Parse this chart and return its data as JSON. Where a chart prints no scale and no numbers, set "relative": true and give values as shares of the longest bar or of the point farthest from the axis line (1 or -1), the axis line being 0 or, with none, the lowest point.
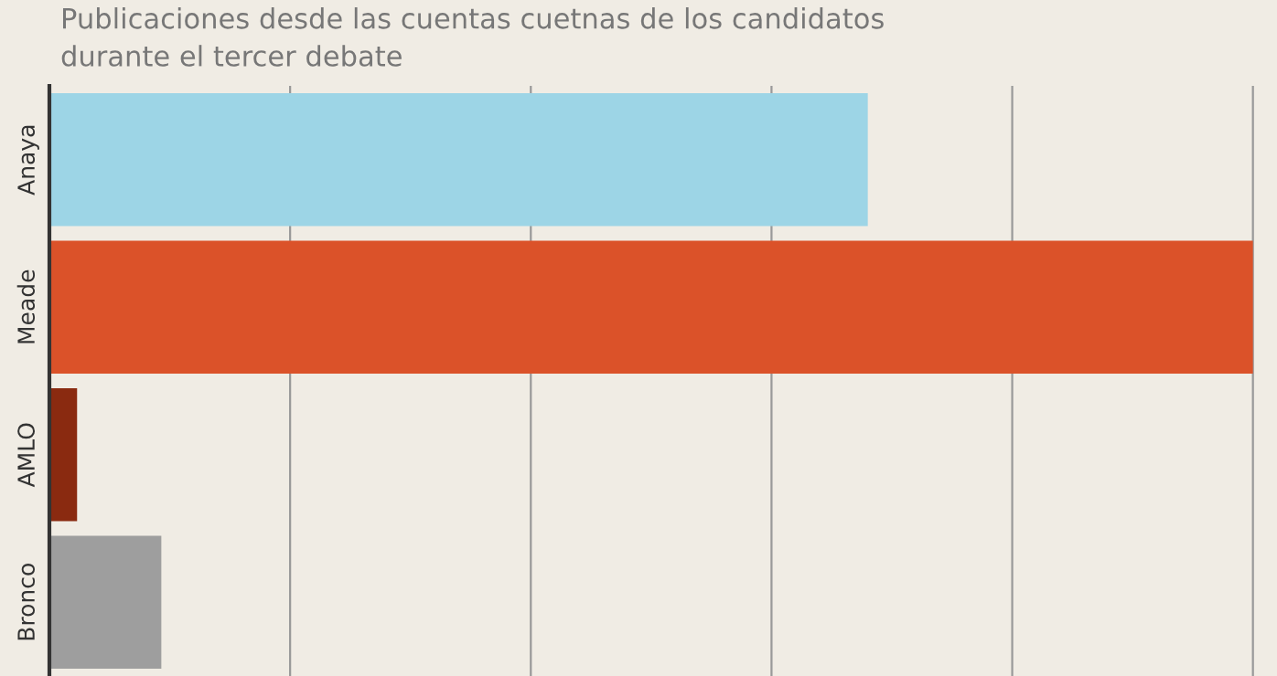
{
  "chart_data": {
    "type": "bar",
    "orientation": "horizontal",
    "relative": true,
    "title": "Publicaciones desde las cuentas cuetnas de los candidatos\ndurante el tercer debate",
    "categories": [
      "Anaya",
      "Meade",
      "AMLO",
      "Bronco"
    ],
    "values": [
      0.68,
      1,
      0.023,
      0.093
    ],
    "colors": [
      "#9dd5e6",
      "#db5229",
      "#8a2a10",
      "#9e9e9e"
    ],
    "grid": "x"
  }
}
